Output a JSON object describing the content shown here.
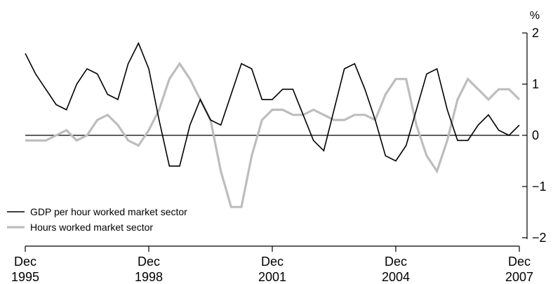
{
  "chart_data": {
    "type": "line",
    "y_unit": "%",
    "ylim": [
      -2,
      2
    ],
    "y_ticks": [
      2,
      1,
      0,
      -1,
      -2
    ],
    "y_tick_labels": [
      "2",
      "1",
      "0",
      "−1",
      "−2"
    ],
    "x_ticks": [
      {
        "line1": "Dec",
        "line2": "1995"
      },
      {
        "line1": "Dec",
        "line2": "1998"
      },
      {
        "line1": "Dec",
        "line2": "2001"
      },
      {
        "line1": "Dec",
        "line2": "2004"
      },
      {
        "line1": "Dec",
        "line2": "2007"
      }
    ],
    "x_tick_quarters": [
      "Dec 1995",
      "Dec 1998",
      "Dec 2001",
      "Dec 2004",
      "Dec 2007"
    ],
    "x": [
      "Dec 1995",
      "Mar 1996",
      "Jun 1996",
      "Sep 1996",
      "Dec 1996",
      "Mar 1997",
      "Jun 1997",
      "Sep 1997",
      "Dec 1997",
      "Mar 1998",
      "Jun 1998",
      "Sep 1998",
      "Dec 1998",
      "Mar 1999",
      "Jun 1999",
      "Sep 1999",
      "Dec 1999",
      "Mar 2000",
      "Jun 2000",
      "Sep 2000",
      "Dec 2000",
      "Mar 2001",
      "Jun 2001",
      "Sep 2001",
      "Dec 2001",
      "Mar 2002",
      "Jun 2002",
      "Sep 2002",
      "Dec 2002",
      "Mar 2003",
      "Jun 2003",
      "Sep 2003",
      "Dec 2003",
      "Mar 2004",
      "Jun 2004",
      "Sep 2004",
      "Dec 2004",
      "Mar 2005",
      "Jun 2005",
      "Sep 2005",
      "Dec 2005",
      "Mar 2006",
      "Jun 2006",
      "Sep 2006",
      "Dec 2006",
      "Mar 2007",
      "Jun 2007",
      "Sep 2007",
      "Dec 2007"
    ],
    "series": [
      {
        "name": "GDP per hour worked market sector",
        "color": "#000000",
        "values": [
          1.6,
          1.2,
          0.9,
          0.6,
          0.5,
          1.0,
          1.3,
          1.2,
          0.8,
          0.7,
          1.4,
          1.8,
          1.3,
          0.3,
          -0.6,
          -0.6,
          0.2,
          0.7,
          0.3,
          0.2,
          0.8,
          1.4,
          1.3,
          0.7,
          0.7,
          0.9,
          0.9,
          0.4,
          -0.1,
          -0.3,
          0.5,
          1.3,
          1.4,
          0.9,
          0.3,
          -0.4,
          -0.5,
          -0.2,
          0.5,
          1.2,
          1.3,
          0.5,
          -0.1,
          -0.1,
          0.2,
          0.4,
          0.1,
          0.0,
          0.2
        ]
      },
      {
        "name": "Hours worked market sector",
        "color": "#bdbdbd",
        "values": [
          -0.1,
          -0.1,
          -0.1,
          0.0,
          0.1,
          -0.1,
          0.0,
          0.3,
          0.4,
          0.2,
          -0.1,
          -0.2,
          0.1,
          0.5,
          1.1,
          1.4,
          1.1,
          0.7,
          0.3,
          -0.7,
          -1.4,
          -1.4,
          -0.4,
          0.3,
          0.5,
          0.5,
          0.4,
          0.4,
          0.5,
          0.4,
          0.3,
          0.3,
          0.4,
          0.4,
          0.3,
          0.8,
          1.1,
          1.1,
          0.2,
          -0.4,
          -0.7,
          -0.1,
          0.7,
          1.1,
          0.9,
          0.7,
          0.9,
          0.9,
          0.7
        ]
      }
    ],
    "zero_line": true,
    "grid": false,
    "legend": {
      "placement": "bottom-left",
      "entries": [
        "GDP per hour worked market sector",
        "Hours worked market sector"
      ]
    }
  }
}
